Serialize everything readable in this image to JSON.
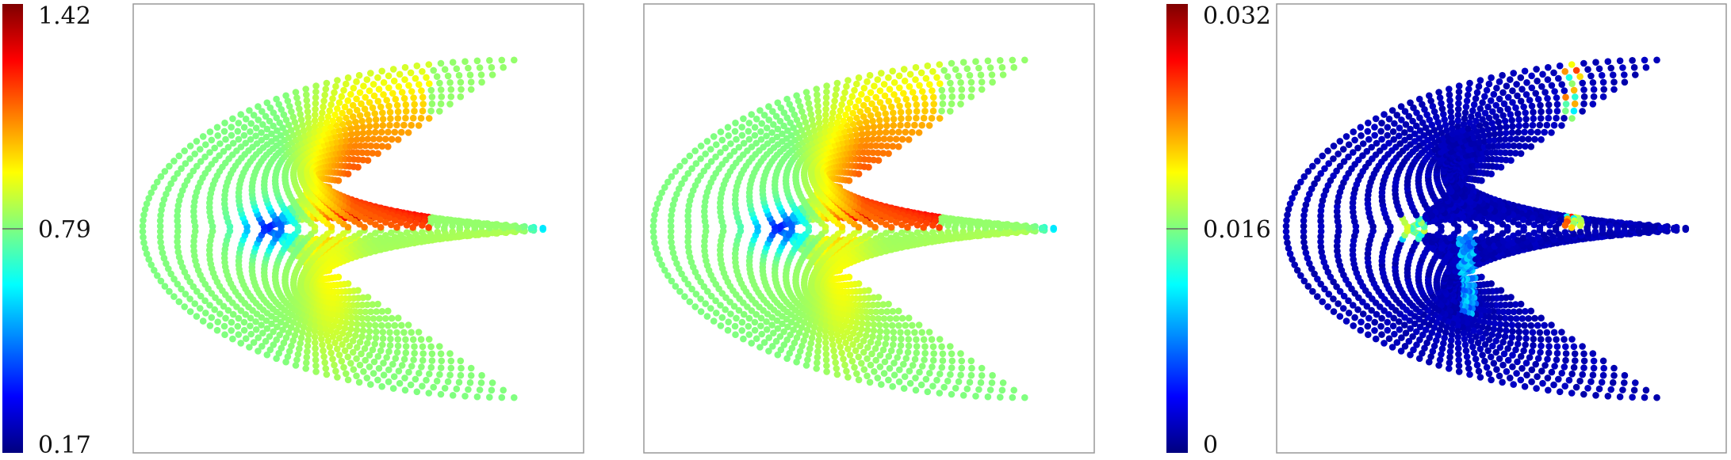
{
  "chart_data": [
    {
      "type": "scatter",
      "title": "",
      "colormap": "jet",
      "colorbar": {
        "min": 0.17,
        "max": 1.42,
        "ticks": [
          {
            "value": 1.42,
            "label": "1.42"
          },
          {
            "value": 0.79,
            "label": "0.79"
          },
          {
            "value": 0.17,
            "label": "0.17"
          }
        ]
      },
      "grid": false,
      "field": "mach-like field on airfoil mesh nodes (reference)"
    },
    {
      "type": "scatter",
      "title": "",
      "colormap": "jet",
      "colorbar": null,
      "grid": false,
      "field": "mach-like field on airfoil mesh nodes (prediction)"
    },
    {
      "type": "scatter",
      "title": "",
      "colormap": "jet",
      "colorbar": {
        "min": 0,
        "max": 0.032,
        "ticks": [
          {
            "value": 0.032,
            "label": "0.032"
          },
          {
            "value": 0.016,
            "label": "0.016"
          },
          {
            "value": 0,
            "label": "0"
          }
        ]
      },
      "grid": false,
      "field": "absolute error on airfoil mesh nodes"
    }
  ]
}
